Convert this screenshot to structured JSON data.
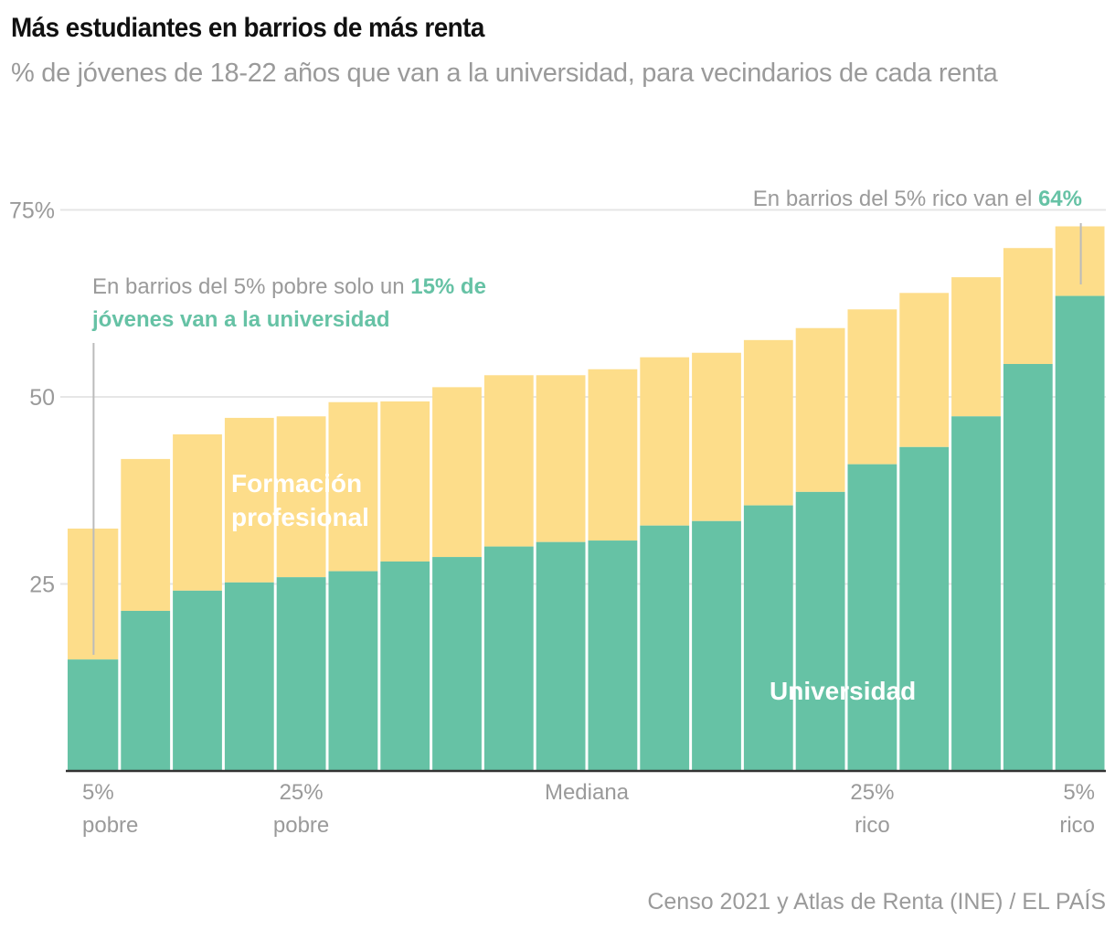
{
  "header": {
    "title": "Más estudiantes en barrios de más renta",
    "subtitle": "% de jóvenes de 18-22 años que van a la universidad, para vecindarios de cada renta"
  },
  "footer": {
    "source": "Censo 2021 y Atlas de Renta (INE) / EL PAÍS"
  },
  "colors": {
    "universidad": "#66c2a5",
    "formacion_profesional": "#fddd8a",
    "grid": "#e6e6e6",
    "axis": "#333333",
    "leader": "#bbbbbb"
  },
  "chart_data": {
    "type": "bar",
    "stacked": true,
    "title": "Más estudiantes en barrios de más renta",
    "subtitle": "% de jóvenes de 18-22 años que van a la universidad, para vecindarios de cada renta",
    "xlabel": "",
    "ylabel": "",
    "ylim": [
      0,
      75
    ],
    "yticks": [
      {
        "value": 25,
        "label": "25"
      },
      {
        "value": 50,
        "label": "50"
      },
      {
        "value": 75,
        "label": "75%"
      }
    ],
    "grid": true,
    "categories": [
      "1",
      "2",
      "3",
      "4",
      "5",
      "6",
      "7",
      "8",
      "9",
      "10",
      "11",
      "12",
      "13",
      "14",
      "15",
      "16",
      "17",
      "18",
      "19",
      "20"
    ],
    "xtick_labels": [
      {
        "bar": 1,
        "lines": [
          "5%",
          "pobre"
        ],
        "align": "start"
      },
      {
        "bar": 5,
        "lines": [
          "25%",
          "pobre"
        ],
        "align": "middle"
      },
      {
        "bar": 10.5,
        "lines": [
          "Mediana"
        ],
        "align": "middle"
      },
      {
        "bar": 16,
        "lines": [
          "25%",
          "rico"
        ],
        "align": "middle"
      },
      {
        "bar": 20,
        "lines": [
          "5%",
          "rico"
        ],
        "align": "end"
      }
    ],
    "series": [
      {
        "name": "Universidad",
        "values": [
          14.9,
          21.4,
          24.1,
          25.2,
          25.9,
          26.7,
          28.0,
          28.6,
          30.0,
          30.6,
          30.8,
          32.8,
          33.4,
          35.5,
          37.3,
          41.0,
          43.3,
          47.4,
          54.4,
          63.5
        ]
      },
      {
        "name": "Formación profesional",
        "values": [
          17.5,
          20.3,
          20.9,
          22.0,
          21.5,
          22.6,
          21.4,
          22.7,
          22.9,
          22.3,
          22.9,
          22.5,
          22.5,
          22.1,
          21.9,
          20.7,
          20.6,
          18.6,
          15.5,
          9.3
        ]
      }
    ],
    "series_labels": [
      {
        "series": "Formación profesional",
        "lines": [
          "Formación",
          "profesional"
        ]
      },
      {
        "series": "Universidad",
        "lines": [
          "Universidad"
        ]
      }
    ],
    "annotations": [
      {
        "bar": 1,
        "text_plain": "En barrios del 5% pobre solo un ",
        "text_strong": "15% de",
        "line2_strong": "jóvenes van a la universidad"
      },
      {
        "bar": 20,
        "text_plain": "En barrios del 5% rico van el ",
        "text_strong": "64%"
      }
    ]
  }
}
